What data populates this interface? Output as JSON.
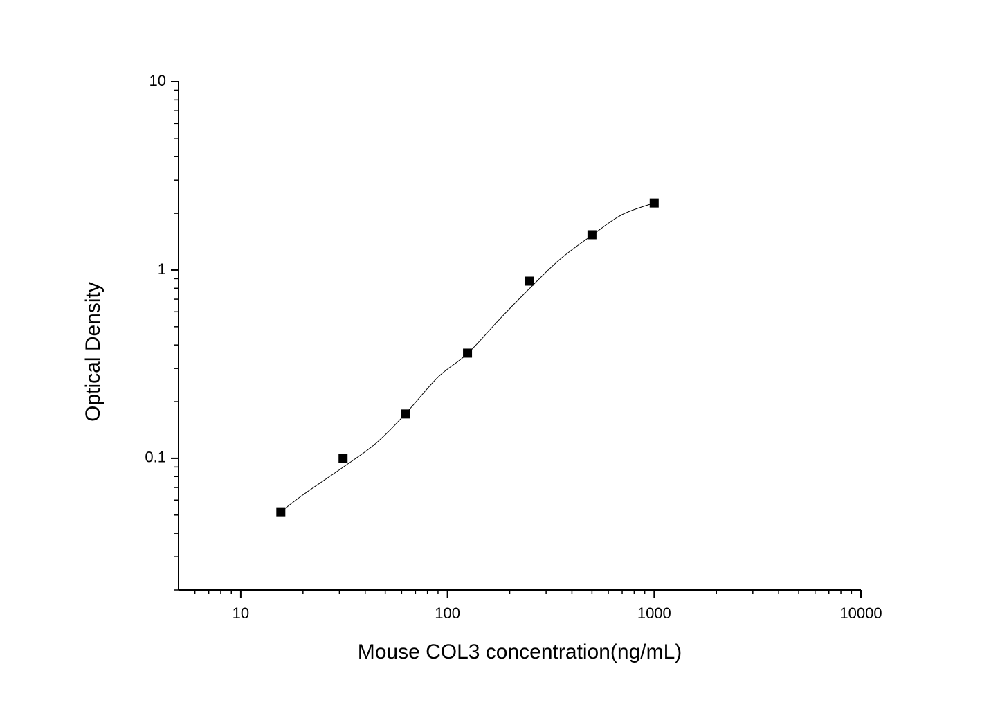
{
  "chart_data": {
    "type": "scatter",
    "x_label": "Mouse COL3 concentration(ng/mL)",
    "y_label": "Optical Density",
    "x_scale": "log",
    "y_scale": "log",
    "xlim": [
      5,
      10000
    ],
    "ylim": [
      0.02,
      10
    ],
    "xticks": [
      10,
      100,
      1000,
      10000
    ],
    "yticks": [
      0.1,
      1,
      10
    ],
    "xminorticks": [
      6,
      7,
      8,
      9,
      20,
      30,
      40,
      50,
      60,
      70,
      80,
      90,
      200,
      300,
      400,
      500,
      600,
      700,
      800,
      900,
      2000,
      3000,
      4000,
      5000,
      6000,
      7000,
      8000,
      9000
    ],
    "yminorticks": [
      0.02,
      0.03,
      0.04,
      0.05,
      0.06,
      0.07,
      0.08,
      0.09,
      0.2,
      0.3,
      0.4,
      0.5,
      0.6,
      0.7,
      0.8,
      0.9,
      2,
      3,
      4,
      5,
      6,
      7,
      8,
      9
    ],
    "color": "#000000",
    "x": [
      15.625,
      31.25,
      62.5,
      125,
      250,
      500,
      1000
    ],
    "values": [
      0.052,
      0.1,
      0.172,
      0.362,
      0.873,
      1.54,
      2.27
    ],
    "fit": {
      "x": [
        15.625,
        20,
        31.25,
        45,
        62.5,
        90,
        125,
        180,
        250,
        350,
        500,
        700,
        1000
      ],
      "values": [
        0.052,
        0.064,
        0.0897,
        0.12,
        0.172,
        0.27,
        0.36,
        0.553,
        0.8,
        1.14,
        1.53,
        1.97,
        2.27
      ]
    }
  }
}
